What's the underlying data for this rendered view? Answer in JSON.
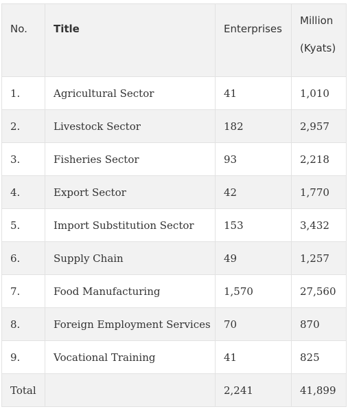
{
  "table": {
    "headers": {
      "no": "No.",
      "title": "Title",
      "enterprises": "Enterprises",
      "million_line1": "Million",
      "million_line2": "(Kyats)"
    },
    "rows": [
      {
        "no": "1.",
        "title": "Agricultural Sector",
        "enterprises": "41",
        "million": "1,010"
      },
      {
        "no": "2.",
        "title": "Livestock Sector",
        "enterprises": "182",
        "million": "2,957"
      },
      {
        "no": "3.",
        "title": "Fisheries Sector",
        "enterprises": "93",
        "million": "2,218"
      },
      {
        "no": "4.",
        "title": "Export Sector",
        "enterprises": "42",
        "million": "1,770"
      },
      {
        "no": "5.",
        "title": "Import Substitution Sector",
        "enterprises": "153",
        "million": "3,432"
      },
      {
        "no": "6.",
        "title": "Supply Chain",
        "enterprises": "49",
        "million": "1,257"
      },
      {
        "no": "7.",
        "title": "Food Manufacturing",
        "enterprises": "1,570",
        "million": "27,560"
      },
      {
        "no": "8.",
        "title": "Foreign Employment Services",
        "enterprises": "70",
        "million": "870"
      },
      {
        "no": "9.",
        "title": "Vocational Training",
        "enterprises": "41",
        "million": "825"
      }
    ],
    "total": {
      "label": "Total",
      "title": "",
      "enterprises": "2,241",
      "million": "41,899"
    }
  },
  "colors": {
    "border": "#e2e2e2",
    "stripe": "#f2f2f2",
    "text": "#333333"
  }
}
